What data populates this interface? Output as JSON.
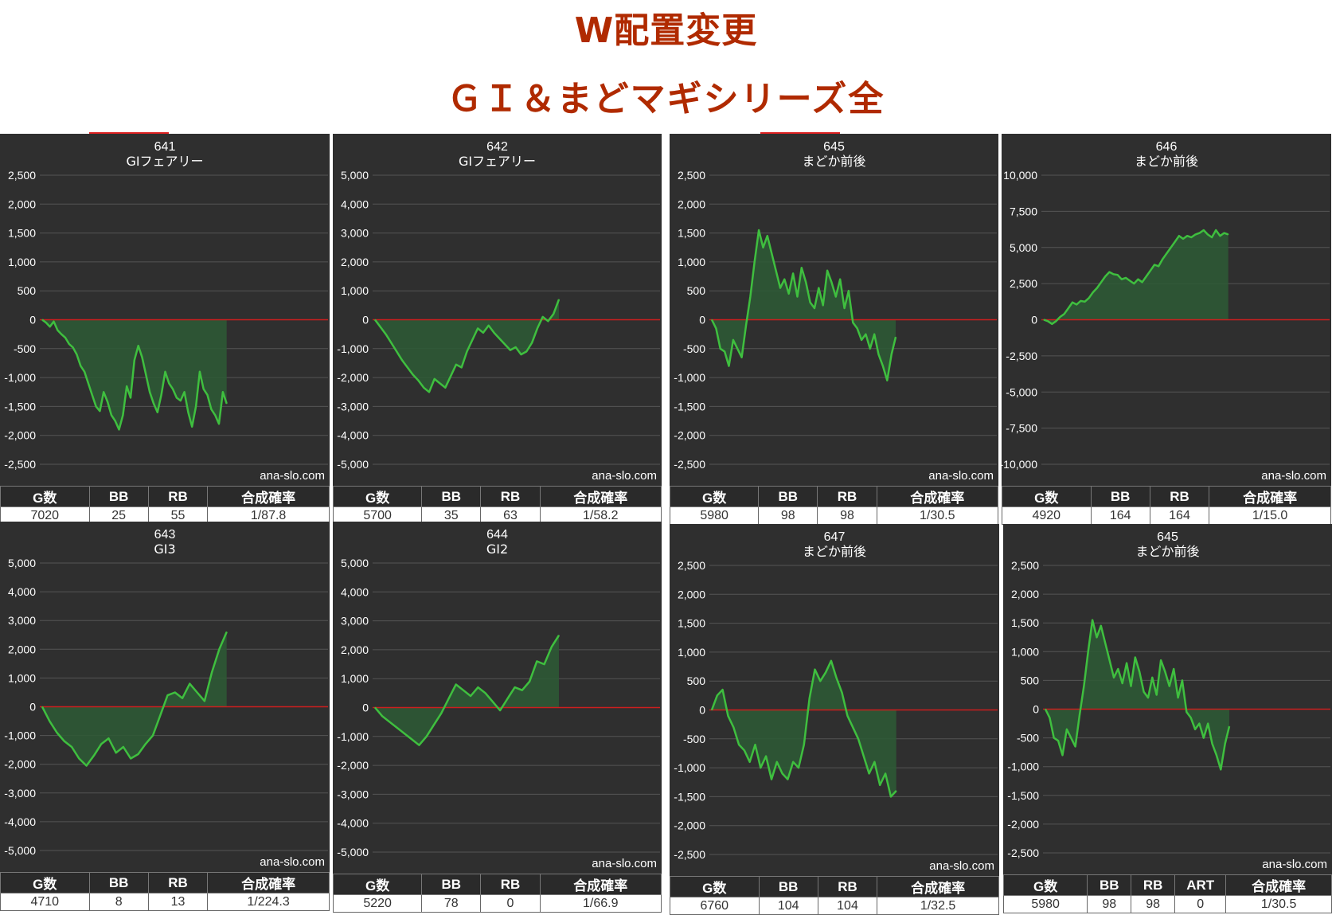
{
  "page": {
    "title_line1": "W配置変更",
    "title_line2": "ＧＩ＆まどマギシリーズ全",
    "watermark": "ana-slo.com"
  },
  "colors": {
    "panel_bg": "#2f2f2f",
    "grid": "#555555",
    "zero_line": "#cc1f1f",
    "series_line": "#3fbf3f",
    "series_fill": "#2d5a35",
    "title_red": "#b02a00"
  },
  "chart_data": [
    {
      "type": "area",
      "machine_no": "641",
      "machine_name": "GIフェアリー",
      "ylim": [
        -2500,
        2500
      ],
      "yticks": [
        2500,
        2000,
        1500,
        1000,
        500,
        0,
        -500,
        -1000,
        -1500,
        -2000,
        -2500
      ],
      "y_tick_labels": [
        "2,500",
        "2,000",
        "1,500",
        "1,000",
        "500",
        "0",
        "-500",
        "-1,000",
        "-1,500",
        "-2,000",
        "-2,500"
      ],
      "series": [
        {
          "values": [
            0,
            -50,
            -120,
            -30,
            -180,
            -250,
            -310,
            -420,
            -480,
            -600,
            -800,
            -900,
            -1100,
            -1300,
            -1500,
            -1580,
            -1250,
            -1420,
            -1650,
            -1750,
            -1900,
            -1650,
            -1150,
            -1350,
            -700,
            -450,
            -650,
            -950,
            -1250,
            -1450,
            -1600,
            -1300,
            -900,
            -1100,
            -1200,
            -1350,
            -1400,
            -1250,
            -1600,
            -1850,
            -1500,
            -900,
            -1200,
            -1300,
            -1550,
            -1650,
            -1800,
            -1250,
            -1450
          ]
        }
      ],
      "stats": {
        "headers": [
          "G数",
          "BB",
          "RB",
          "合成確率"
        ],
        "values": [
          "7020",
          "25",
          "55",
          "1/87.8"
        ]
      }
    },
    {
      "type": "area",
      "machine_no": "642",
      "machine_name": "GIフェアリー",
      "ylim": [
        -5000,
        5000
      ],
      "yticks": [
        5000,
        4000,
        3000,
        2000,
        1000,
        0,
        -1000,
        -2000,
        -3000,
        -4000,
        -5000
      ],
      "y_tick_labels": [
        "5,000",
        "4,000",
        "3,000",
        "2,000",
        "1,000",
        "0",
        "-1,000",
        "-2,000",
        "-3,000",
        "-4,000",
        "-5,000"
      ],
      "series": [
        {
          "values": [
            0,
            -250,
            -500,
            -800,
            -1100,
            -1400,
            -1650,
            -1900,
            -2100,
            -2350,
            -2500,
            -2050,
            -2200,
            -2350,
            -1950,
            -1550,
            -1650,
            -1100,
            -700,
            -300,
            -450,
            -200,
            -450,
            -650,
            -850,
            -1050,
            -950,
            -1200,
            -1100,
            -800,
            -300,
            100,
            -50,
            200,
            700
          ]
        }
      ],
      "stats": {
        "headers": [
          "G数",
          "BB",
          "RB",
          "合成確率"
        ],
        "values": [
          "5700",
          "35",
          "63",
          "1/58.2"
        ]
      }
    },
    {
      "type": "area",
      "machine_no": "645",
      "machine_name": "まどか前後",
      "ylim": [
        -2500,
        2500
      ],
      "yticks": [
        2500,
        2000,
        1500,
        1000,
        500,
        0,
        -500,
        -1000,
        -1500,
        -2000,
        -2500
      ],
      "y_tick_labels": [
        "2,500",
        "2,000",
        "1,500",
        "1,000",
        "500",
        "0",
        "-500",
        "-1,000",
        "-1,500",
        "-2,000",
        "-2,500"
      ],
      "series": [
        {
          "values": [
            0,
            -150,
            -500,
            -550,
            -800,
            -350,
            -500,
            -650,
            -100,
            400,
            1000,
            1550,
            1250,
            1450,
            1150,
            850,
            550,
            700,
            450,
            800,
            400,
            900,
            650,
            300,
            200,
            550,
            250,
            850,
            650,
            400,
            700,
            200,
            500,
            -50,
            -150,
            -350,
            -250,
            -500,
            -250,
            -600,
            -800,
            -1050,
            -600,
            -300
          ]
        }
      ],
      "stats": {
        "headers": [
          "G数",
          "BB",
          "RB",
          "合成確率"
        ],
        "values": [
          "5980",
          "98",
          "98",
          "1/30.5"
        ]
      }
    },
    {
      "type": "area",
      "machine_no": "646",
      "machine_name": "まどか前後",
      "ylim": [
        -10000,
        10000
      ],
      "yticks": [
        10000,
        7500,
        5000,
        2500,
        0,
        -2500,
        -5000,
        -7500,
        -10000
      ],
      "y_tick_labels": [
        "10,000",
        "7,500",
        "5,000",
        "2,500",
        "0",
        "-2,500",
        "-5,000",
        "-7,500",
        "-10,000"
      ],
      "series": [
        {
          "values": [
            0,
            -100,
            -300,
            -100,
            200,
            400,
            800,
            1200,
            1050,
            1300,
            1250,
            1500,
            1900,
            2200,
            2600,
            3000,
            3300,
            3150,
            3100,
            2800,
            2900,
            2700,
            2500,
            2800,
            2600,
            3000,
            3400,
            3800,
            3700,
            4200,
            4600,
            5000,
            5400,
            5800,
            5600,
            5800,
            5700,
            5900,
            6000,
            6200,
            5900,
            5700,
            6200,
            5800,
            6000,
            5900
          ]
        }
      ],
      "stats": {
        "headers": [
          "G数",
          "BB",
          "RB",
          "合成確率"
        ],
        "values": [
          "4920",
          "164",
          "164",
          "1/15.0"
        ]
      }
    },
    {
      "type": "area",
      "machine_no": "643",
      "machine_name": "GI3",
      "ylim": [
        -5000,
        5000
      ],
      "yticks": [
        5000,
        4000,
        3000,
        2000,
        1000,
        0,
        -1000,
        -2000,
        -3000,
        -4000,
        -5000
      ],
      "y_tick_labels": [
        "5,000",
        "4,000",
        "3,000",
        "2,000",
        "1,000",
        "0",
        "-1,000",
        "-2,000",
        "-3,000",
        "-4,000",
        "-5,000"
      ],
      "series": [
        {
          "values": [
            0,
            -500,
            -900,
            -1200,
            -1400,
            -1800,
            -2050,
            -1700,
            -1300,
            -1100,
            -1600,
            -1400,
            -1800,
            -1650,
            -1300,
            -1000,
            -300,
            400,
            500,
            300,
            800,
            500,
            200,
            1200,
            2000,
            2600
          ]
        }
      ],
      "stats": {
        "headers": [
          "G数",
          "BB",
          "RB",
          "合成確率"
        ],
        "values": [
          "4710",
          "8",
          "13",
          "1/224.3"
        ]
      }
    },
    {
      "type": "area",
      "machine_no": "644",
      "machine_name": "GI2",
      "ylim": [
        -5000,
        5000
      ],
      "yticks": [
        5000,
        4000,
        3000,
        2000,
        1000,
        0,
        -1000,
        -2000,
        -3000,
        -4000,
        -5000
      ],
      "y_tick_labels": [
        "5,000",
        "4,000",
        "3,000",
        "2,000",
        "1,000",
        "0",
        "-1,000",
        "-2,000",
        "-3,000",
        "-4,000",
        "-5,000"
      ],
      "series": [
        {
          "values": [
            0,
            -300,
            -500,
            -700,
            -900,
            -1100,
            -1300,
            -1000,
            -600,
            -200,
            300,
            800,
            600,
            400,
            700,
            500,
            200,
            -100,
            300,
            700,
            600,
            900,
            1600,
            1500,
            2100,
            2500
          ]
        }
      ],
      "stats": {
        "headers": [
          "G数",
          "BB",
          "RB",
          "合成確率"
        ],
        "values": [
          "5220",
          "78",
          "0",
          "1/66.9"
        ]
      }
    },
    {
      "type": "area",
      "machine_no": "647",
      "machine_name": "まどか前後",
      "ylim": [
        -2500,
        2500
      ],
      "yticks": [
        2500,
        2000,
        1500,
        1000,
        500,
        0,
        -500,
        -1000,
        -1500,
        -2000,
        -2500
      ],
      "y_tick_labels": [
        "2,500",
        "2,000",
        "1,500",
        "1,000",
        "500",
        "0",
        "-500",
        "-1,000",
        "-1,500",
        "-2,000",
        "-2,500"
      ],
      "series": [
        {
          "values": [
            0,
            250,
            350,
            -100,
            -300,
            -600,
            -700,
            -900,
            -600,
            -1000,
            -800,
            -1200,
            -900,
            -1100,
            -1200,
            -900,
            -1000,
            -600,
            200,
            700,
            500,
            650,
            850,
            550,
            300,
            -100,
            -300,
            -500,
            -800,
            -1100,
            -900,
            -1300,
            -1100,
            -1500,
            -1400
          ]
        }
      ],
      "stats": {
        "headers": [
          "G数",
          "BB",
          "RB",
          "合成確率"
        ],
        "values": [
          "6760",
          "104",
          "104",
          "1/32.5"
        ]
      }
    },
    {
      "type": "area",
      "machine_no": "645",
      "machine_name": "まどか前後",
      "ylim": [
        -2500,
        2500
      ],
      "yticks": [
        2500,
        2000,
        1500,
        1000,
        500,
        0,
        -500,
        -1000,
        -1500,
        -2000,
        -2500
      ],
      "y_tick_labels": [
        "2,500",
        "2,000",
        "1,500",
        "1,000",
        "500",
        "0",
        "-500",
        "-1,000",
        "-1,500",
        "-2,000",
        "-2,500"
      ],
      "series": [
        {
          "values": [
            0,
            -150,
            -500,
            -550,
            -800,
            -350,
            -500,
            -650,
            -100,
            400,
            1000,
            1550,
            1250,
            1450,
            1150,
            850,
            550,
            700,
            450,
            800,
            400,
            900,
            650,
            300,
            200,
            550,
            250,
            850,
            650,
            400,
            700,
            200,
            500,
            -50,
            -150,
            -350,
            -250,
            -500,
            -250,
            -600,
            -800,
            -1050,
            -600,
            -300
          ]
        }
      ],
      "stats": {
        "headers": [
          "G数",
          "BB",
          "RB",
          "ART",
          "合成確率"
        ],
        "values": [
          "5980",
          "98",
          "98",
          "0",
          "1/30.5"
        ]
      }
    }
  ]
}
